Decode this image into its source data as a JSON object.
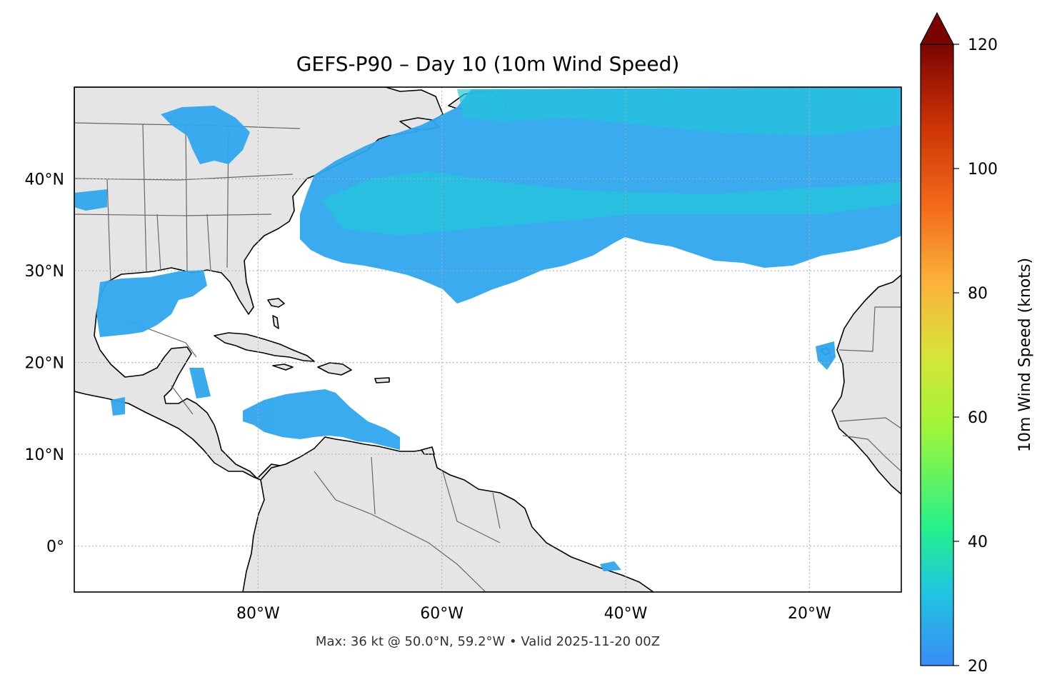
{
  "title": "GEFS-P90 – Day 10 (10m Wind Speed)",
  "footer": "Max: 36 kt @ 50.0°N, 59.2°W • Valid 2025-11-20 00Z",
  "map": {
    "lon_range": [
      -100,
      -10
    ],
    "lat_range": [
      -5,
      50
    ],
    "lon_ticks": [
      {
        "value": -80,
        "label": "80°W"
      },
      {
        "value": -60,
        "label": "60°W"
      },
      {
        "value": -40,
        "label": "40°W"
      },
      {
        "value": -20,
        "label": "20°W"
      }
    ],
    "lat_ticks": [
      {
        "value": 40,
        "label": "40°N"
      },
      {
        "value": 30,
        "label": "30°N"
      },
      {
        "value": 20,
        "label": "20°N"
      },
      {
        "value": 10,
        "label": "10°N"
      },
      {
        "value": 0,
        "label": "0°"
      }
    ],
    "land_color": "#e5e5e5",
    "ocean_color": "#ffffff",
    "gridlines": true
  },
  "colorbar": {
    "label": "10m Wind Speed (knots)",
    "min": 20,
    "max": 120,
    "extend": "max",
    "ticks": [
      {
        "value": 20,
        "label": "20"
      },
      {
        "value": 40,
        "label": "40"
      },
      {
        "value": 60,
        "label": "60"
      },
      {
        "value": 80,
        "label": "80"
      },
      {
        "value": 100,
        "label": "100"
      },
      {
        "value": 120,
        "label": "120"
      }
    ],
    "colormap": [
      "#3a8cf5",
      "#1fc6e0",
      "#25f08a",
      "#9ef53a",
      "#d8e33a",
      "#fbb03b",
      "#f26a1a",
      "#cc3306",
      "#7a0403"
    ]
  },
  "max_point": {
    "speed_kt": 36,
    "lat": 50.0,
    "lon": -59.2
  }
}
